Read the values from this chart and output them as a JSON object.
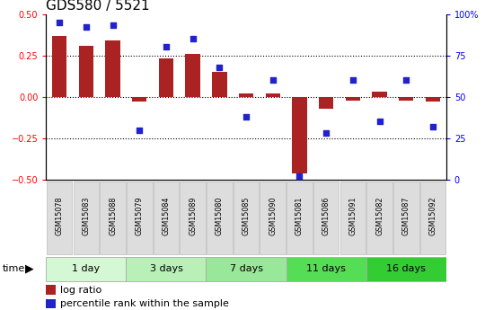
{
  "title": "GDS580 / 5521",
  "samples": [
    "GSM15078",
    "GSM15083",
    "GSM15088",
    "GSM15079",
    "GSM15084",
    "GSM15089",
    "GSM15080",
    "GSM15085",
    "GSM15090",
    "GSM15081",
    "GSM15086",
    "GSM15091",
    "GSM15082",
    "GSM15087",
    "GSM15092"
  ],
  "log_ratio": [
    0.37,
    0.31,
    0.34,
    -0.03,
    0.23,
    0.26,
    0.15,
    0.02,
    0.02,
    -0.46,
    -0.07,
    -0.02,
    0.03,
    -0.02,
    -0.03
  ],
  "percentile_rank": [
    95,
    92,
    93,
    30,
    80,
    85,
    68,
    38,
    60,
    2,
    28,
    60,
    35,
    60,
    32
  ],
  "groups": [
    {
      "label": "1 day",
      "start": 0,
      "end": 3
    },
    {
      "label": "3 days",
      "start": 3,
      "end": 6
    },
    {
      "label": "7 days",
      "start": 6,
      "end": 9
    },
    {
      "label": "11 days",
      "start": 9,
      "end": 12
    },
    {
      "label": "16 days",
      "start": 12,
      "end": 15
    }
  ],
  "group_colors": [
    "#d4f7d4",
    "#b8f0b8",
    "#99e899",
    "#55dd55",
    "#33cc33"
  ],
  "ylim": [
    -0.5,
    0.5
  ],
  "y2lim": [
    0,
    100
  ],
  "yticks": [
    -0.5,
    -0.25,
    0.0,
    0.25,
    0.5
  ],
  "y2ticks": [
    0,
    25,
    50,
    75,
    100
  ],
  "hlines": [
    -0.25,
    0.0,
    0.25
  ],
  "bar_color": "#aa2222",
  "dot_color": "#2222cc",
  "bg_color": "#ffffff",
  "title_fontsize": 11,
  "tick_fontsize": 7,
  "legend_fontsize": 8,
  "bar_width": 0.55
}
